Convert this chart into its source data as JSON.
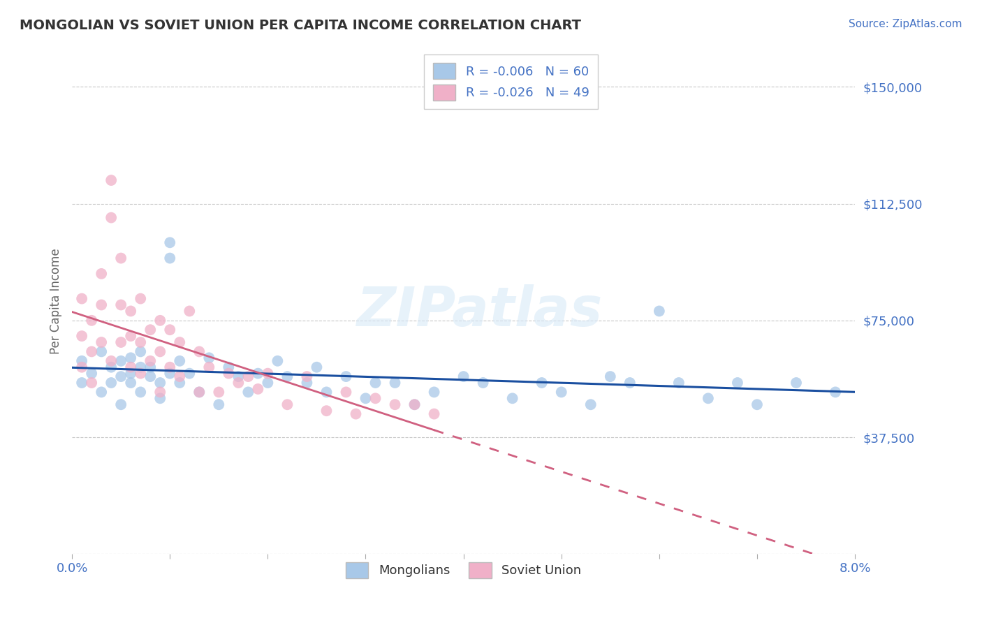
{
  "title": "MONGOLIAN VS SOVIET UNION PER CAPITA INCOME CORRELATION CHART",
  "source_text": "Source: ZipAtlas.com",
  "ylabel": "Per Capita Income",
  "xlim": [
    0.0,
    0.08
  ],
  "ylim": [
    0,
    162500
  ],
  "yticks": [
    0,
    37500,
    75000,
    112500,
    150000
  ],
  "ytick_labels": [
    "",
    "$37,500",
    "$75,000",
    "$112,500",
    "$150,000"
  ],
  "xticks": [
    0.0,
    0.01,
    0.02,
    0.03,
    0.04,
    0.05,
    0.06,
    0.07,
    0.08
  ],
  "xtick_labels": [
    "0.0%",
    "",
    "",
    "",
    "",
    "",
    "",
    "",
    "8.0%"
  ],
  "background_color": "#ffffff",
  "grid_color": "#c8c8c8",
  "mongolians_color": "#a8c8e8",
  "soviet_color": "#f0b0c8",
  "mongolians_line_color": "#1a4fa0",
  "soviet_line_color": "#d06080",
  "legend_line1": "R = -0.006   N = 60",
  "legend_line2": "R = -0.026   N = 49",
  "legend_label_mongolians": "Mongolians",
  "legend_label_soviet": "Soviet Union",
  "title_color": "#333333",
  "axis_label_color": "#666666",
  "tick_label_color": "#4472c4",
  "watermark_text": "ZIPatlas",
  "mongolians_x": [
    0.001,
    0.001,
    0.002,
    0.003,
    0.003,
    0.004,
    0.004,
    0.005,
    0.005,
    0.005,
    0.006,
    0.006,
    0.006,
    0.007,
    0.007,
    0.007,
    0.008,
    0.008,
    0.009,
    0.009,
    0.01,
    0.01,
    0.01,
    0.011,
    0.011,
    0.012,
    0.013,
    0.014,
    0.015,
    0.016,
    0.017,
    0.018,
    0.019,
    0.02,
    0.021,
    0.022,
    0.024,
    0.025,
    0.026,
    0.028,
    0.03,
    0.031,
    0.033,
    0.035,
    0.037,
    0.04,
    0.042,
    0.045,
    0.048,
    0.05,
    0.053,
    0.055,
    0.057,
    0.06,
    0.062,
    0.065,
    0.068,
    0.07,
    0.074,
    0.078
  ],
  "mongolians_y": [
    62000,
    55000,
    58000,
    65000,
    52000,
    60000,
    55000,
    62000,
    57000,
    48000,
    55000,
    63000,
    58000,
    60000,
    52000,
    65000,
    57000,
    60000,
    55000,
    50000,
    95000,
    100000,
    58000,
    62000,
    55000,
    58000,
    52000,
    63000,
    48000,
    60000,
    57000,
    52000,
    58000,
    55000,
    62000,
    57000,
    55000,
    60000,
    52000,
    57000,
    50000,
    55000,
    55000,
    48000,
    52000,
    57000,
    55000,
    50000,
    55000,
    52000,
    48000,
    57000,
    55000,
    78000,
    55000,
    50000,
    55000,
    48000,
    55000,
    52000
  ],
  "soviet_x": [
    0.001,
    0.001,
    0.001,
    0.002,
    0.002,
    0.002,
    0.003,
    0.003,
    0.003,
    0.004,
    0.004,
    0.004,
    0.005,
    0.005,
    0.005,
    0.006,
    0.006,
    0.006,
    0.007,
    0.007,
    0.007,
    0.008,
    0.008,
    0.009,
    0.009,
    0.009,
    0.01,
    0.01,
    0.011,
    0.011,
    0.012,
    0.013,
    0.013,
    0.014,
    0.015,
    0.016,
    0.017,
    0.018,
    0.019,
    0.02,
    0.022,
    0.024,
    0.026,
    0.028,
    0.029,
    0.031,
    0.033,
    0.035,
    0.037
  ],
  "soviet_y": [
    82000,
    70000,
    60000,
    75000,
    65000,
    55000,
    90000,
    80000,
    68000,
    120000,
    108000,
    62000,
    95000,
    80000,
    68000,
    78000,
    70000,
    60000,
    82000,
    68000,
    58000,
    72000,
    62000,
    75000,
    65000,
    52000,
    72000,
    60000,
    68000,
    57000,
    78000,
    65000,
    52000,
    60000,
    52000,
    58000,
    55000,
    57000,
    53000,
    58000,
    48000,
    57000,
    46000,
    52000,
    45000,
    50000,
    48000,
    48000,
    45000
  ]
}
